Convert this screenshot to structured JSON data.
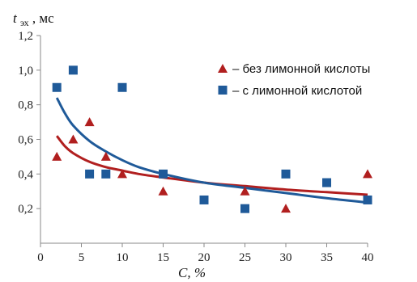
{
  "colors": {
    "series_1": "#b11f1f",
    "series_2": "#1f5a99",
    "axis": "#8a8a8a"
  },
  "chart_data": {
    "type": "scatter",
    "ylabel_var": "t",
    "ylabel_sub": "эх",
    "ylabel_unit": ", мс",
    "xlabel": "C, %",
    "xlim": [
      0,
      40
    ],
    "ylim": [
      0,
      1.2
    ],
    "xticks": [
      0,
      5,
      10,
      15,
      20,
      25,
      30,
      35,
      40
    ],
    "yticks": [
      0.2,
      0.4,
      0.6,
      0.8,
      1.0,
      1.2
    ],
    "xtick_labels": [
      "0",
      "5",
      "10",
      "15",
      "20",
      "25",
      "30",
      "35",
      "40"
    ],
    "ytick_labels": [
      "0,2",
      "0,4",
      "0,6",
      "0,8",
      "1,0",
      "1,2"
    ],
    "grid": false,
    "legend_position": "top-right",
    "series": [
      {
        "name": "– без лимонной кислоты",
        "marker": "triangle",
        "color": "#b11f1f",
        "x": [
          2,
          4,
          6,
          8,
          10,
          15,
          25,
          30,
          40
        ],
        "y": [
          0.5,
          0.6,
          0.7,
          0.5,
          0.4,
          0.3,
          0.3,
          0.2,
          0.4
        ],
        "trend": {
          "x": [
            2,
            3,
            4,
            6,
            8,
            10,
            12,
            15,
            20,
            25,
            30,
            35,
            40
          ],
          "y": [
            0.62,
            0.56,
            0.52,
            0.47,
            0.44,
            0.42,
            0.4,
            0.38,
            0.35,
            0.33,
            0.31,
            0.295,
            0.28
          ]
        }
      },
      {
        "name": "– с лимонной кислотой",
        "marker": "square",
        "color": "#1f5a99",
        "x": [
          2,
          4,
          6,
          8,
          10,
          15,
          20,
          25,
          30,
          35,
          40
        ],
        "y": [
          0.9,
          1.0,
          0.4,
          0.4,
          0.9,
          0.4,
          0.25,
          0.2,
          0.4,
          0.35,
          0.25
        ],
        "trend": {
          "x": [
            2,
            3,
            4,
            6,
            8,
            10,
            12,
            15,
            20,
            25,
            30,
            35,
            40
          ],
          "y": [
            0.84,
            0.75,
            0.68,
            0.59,
            0.53,
            0.48,
            0.44,
            0.4,
            0.35,
            0.32,
            0.29,
            0.26,
            0.235
          ]
        }
      }
    ]
  }
}
